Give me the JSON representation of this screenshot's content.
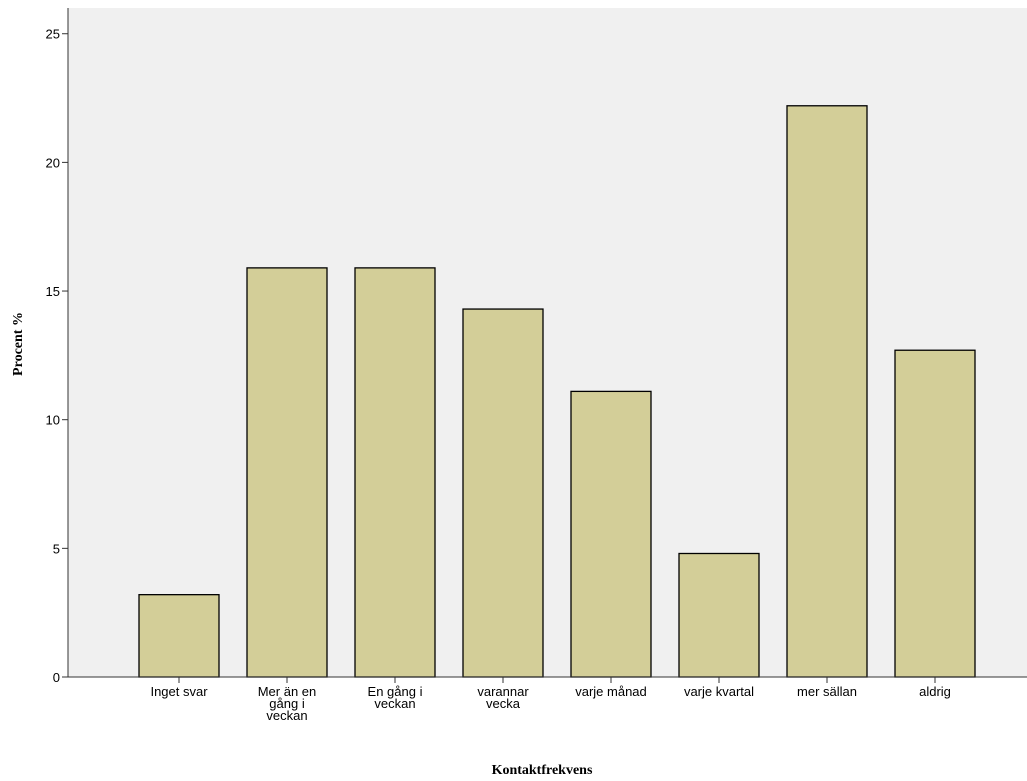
{
  "chart_data": {
    "type": "bar",
    "categories": [
      [
        "Inget svar"
      ],
      [
        "Mer än en",
        "gång i",
        "veckan"
      ],
      [
        "En gång i",
        "veckan"
      ],
      [
        "varannar",
        "vecka"
      ],
      [
        "varje månad"
      ],
      [
        "varje kvartal"
      ],
      [
        "mer sällan"
      ],
      [
        "aldrig"
      ]
    ],
    "values": [
      3.2,
      15.9,
      15.9,
      14.3,
      11.1,
      4.8,
      22.2,
      12.7
    ],
    "title": "",
    "xlabel": "Kontaktfrekvens",
    "ylabel": "Procent %",
    "ylim": [
      0,
      26
    ],
    "yticks": [
      "0",
      "5",
      "10",
      "15",
      "20",
      "25"
    ],
    "grid": false,
    "colors": {
      "plot_background": "#f0f0f0",
      "bar_fill": "#d3ce98",
      "bar_stroke": "#000000",
      "axis": "#333333"
    }
  }
}
